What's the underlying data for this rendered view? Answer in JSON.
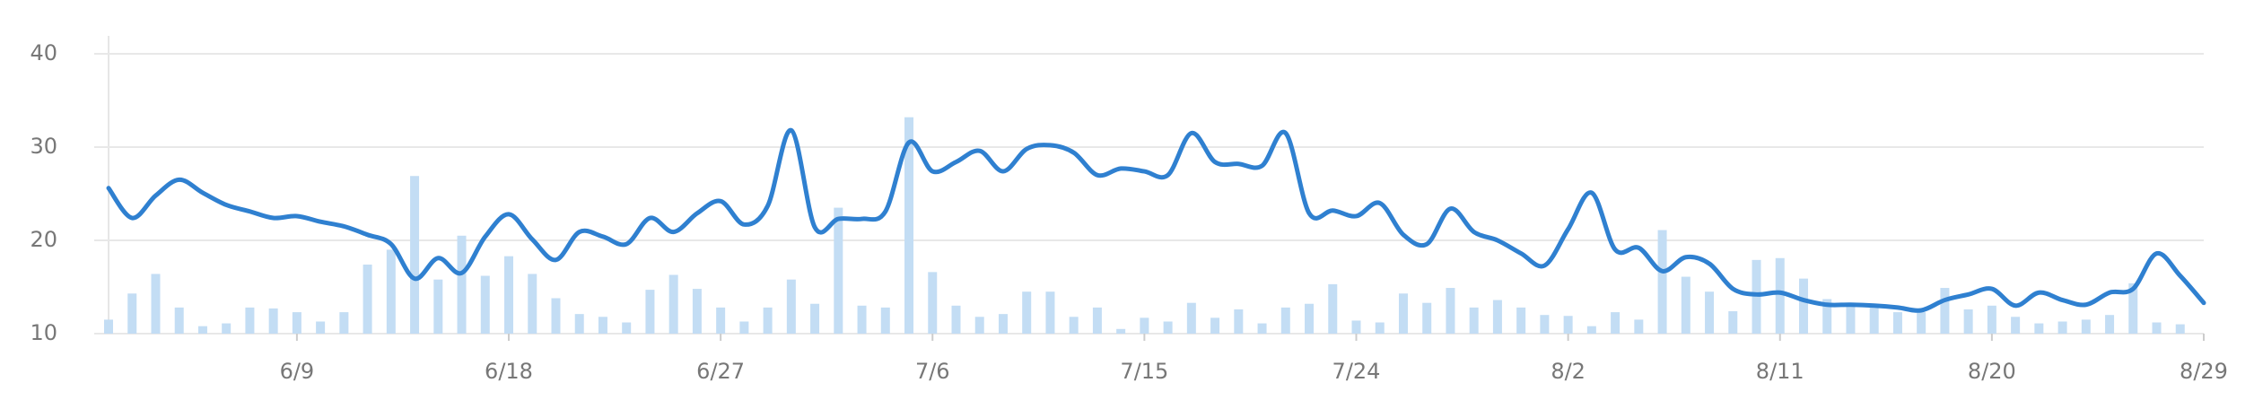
{
  "chart_data": {
    "type": "bar",
    "categories": [
      null,
      null,
      null,
      null,
      null,
      null,
      null,
      null,
      "6/9",
      null,
      null,
      null,
      null,
      null,
      null,
      null,
      null,
      "6/18",
      null,
      null,
      null,
      null,
      null,
      null,
      null,
      null,
      "6/27",
      null,
      null,
      null,
      null,
      null,
      null,
      null,
      null,
      "7/6",
      null,
      null,
      null,
      null,
      null,
      null,
      null,
      null,
      "7/15",
      null,
      null,
      null,
      null,
      null,
      null,
      null,
      null,
      "7/24",
      null,
      null,
      null,
      null,
      null,
      null,
      null,
      null,
      "8/2",
      null,
      null,
      null,
      null,
      null,
      null,
      null,
      null,
      "8/11",
      null,
      null,
      null,
      null,
      null,
      null,
      null,
      null,
      "8/20",
      null,
      null,
      null,
      null,
      null,
      null,
      null,
      null,
      "8/29"
    ],
    "series": [
      {
        "type": "bar",
        "color": "#c3ddf4",
        "values": [
          11.5,
          14.3,
          16.4,
          12.8,
          10.8,
          11.1,
          12.8,
          12.7,
          12.3,
          11.3,
          12.3,
          17.4,
          19.0,
          26.9,
          15.8,
          20.5,
          16.2,
          18.3,
          16.4,
          13.8,
          12.1,
          11.8,
          11.2,
          14.7,
          16.3,
          14.8,
          12.8,
          11.3,
          12.8,
          15.8,
          13.2,
          23.5,
          13.0,
          12.8,
          33.2,
          16.6,
          13.0,
          11.8,
          12.1,
          14.5,
          14.5,
          11.8,
          12.8,
          10.5,
          11.7,
          11.3,
          13.3,
          11.7,
          12.6,
          11.1,
          12.8,
          13.2,
          15.3,
          11.4,
          11.2,
          14.3,
          13.3,
          14.9,
          12.8,
          13.6,
          12.8,
          12.0,
          11.9,
          10.8,
          12.3,
          11.5,
          21.1,
          16.1,
          14.5,
          12.4,
          17.9,
          18.1,
          15.9,
          13.7,
          13.1,
          12.9,
          12.3,
          12.3,
          14.9,
          12.6,
          13.0,
          11.8,
          11.1,
          11.3,
          11.5,
          12.0,
          15.4,
          11.2,
          11.0,
          null
        ]
      },
      {
        "type": "line",
        "color": "#2f80d0",
        "values": [
          25.6,
          22.4,
          24.8,
          26.5,
          25.1,
          23.8,
          23.1,
          22.4,
          22.6,
          22.0,
          21.5,
          20.6,
          19.6,
          15.9,
          18.1,
          16.5,
          20.4,
          22.8,
          20.1,
          17.9,
          20.9,
          20.4,
          19.6,
          22.4,
          20.9,
          22.9,
          24.2,
          21.7,
          23.7,
          31.8,
          21.4,
          22.3,
          22.3,
          23.1,
          30.5,
          27.4,
          28.4,
          29.6,
          27.4,
          29.8,
          30.2,
          29.4,
          27.0,
          27.7,
          27.4,
          27.0,
          31.5,
          28.4,
          28.2,
          28.0,
          31.5,
          22.9,
          23.2,
          22.6,
          24.0,
          20.6,
          19.6,
          23.4,
          20.9,
          20.0,
          18.6,
          17.3,
          21.2,
          25.1,
          19.0,
          19.2,
          16.7,
          18.2,
          17.5,
          14.8,
          14.2,
          14.4,
          13.6,
          13.1,
          13.1,
          13.0,
          12.8,
          12.5,
          13.6,
          14.2,
          14.8,
          13.0,
          14.4,
          13.6,
          13.1,
          14.4,
          14.8,
          18.6,
          16.2,
          13.3
        ]
      }
    ],
    "ylim": [
      10,
      40
    ],
    "yticks": [
      10,
      20,
      30,
      40
    ],
    "grid": true
  }
}
